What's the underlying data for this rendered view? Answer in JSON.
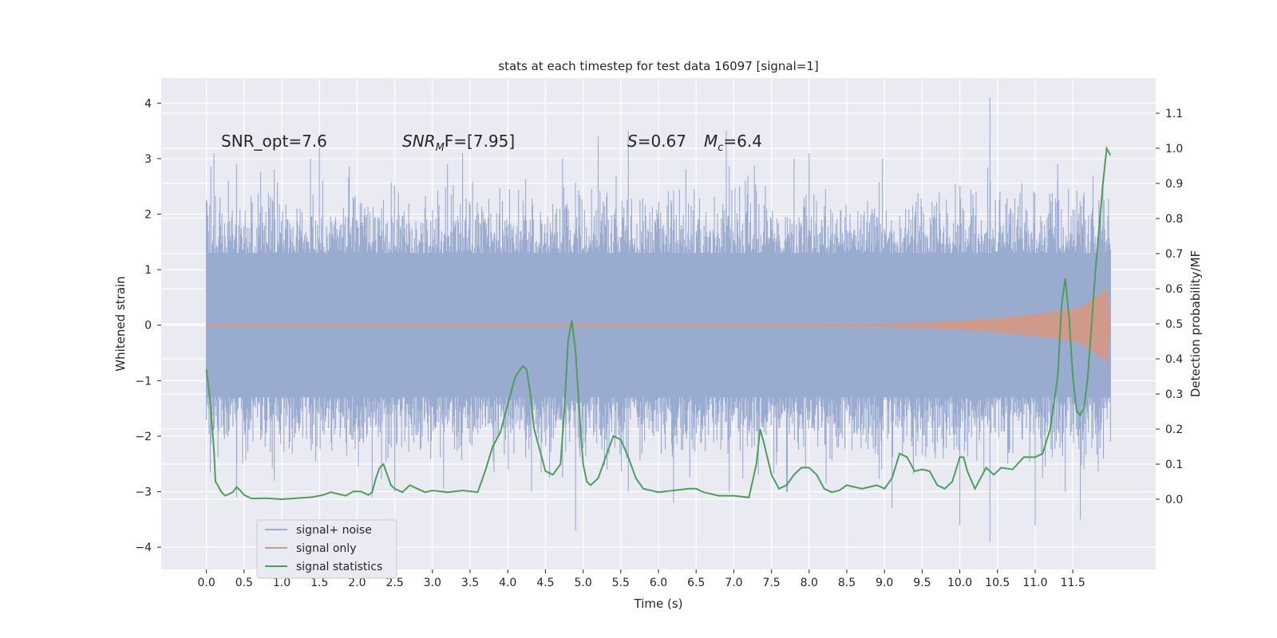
{
  "chart_data": {
    "type": "line",
    "title": "stats at each timestep for test data 16097 [signal=1]",
    "xlabel": "Time (s)",
    "ylabel": "Whitened strain",
    "ylabel_right": "Detection probability/MF",
    "xlim": [
      -0.6,
      12.6
    ],
    "ylim": [
      -4.4,
      4.45
    ],
    "ylim_right": [
      -0.2,
      1.2
    ],
    "x_ticks": [
      "0.0",
      "0.5",
      "1.0",
      "1.5",
      "2.0",
      "2.5",
      "3.0",
      "3.5",
      "4.0",
      "4.5",
      "5.0",
      "5.5",
      "6.0",
      "6.5",
      "7.0",
      "7.5",
      "8.0",
      "8.5",
      "9.0",
      "9.5",
      "10.0",
      "10.5",
      "11.0",
      "11.5"
    ],
    "y_ticks_left": [
      "4",
      "3",
      "2",
      "1",
      "0",
      "−1",
      "−2",
      "−3",
      "−4"
    ],
    "y_ticks_right": [
      "1.1",
      "1.0",
      "0.9",
      "0.8",
      "0.7",
      "0.6",
      "0.5",
      "0.4",
      "0.3",
      "0.2",
      "0.1",
      "0.0"
    ],
    "grid": true,
    "annotations": {
      "snr_opt": "SNR_opt=7.6",
      "snr_mf_prefix": "SNR",
      "snr_mf_sub": "M",
      "snr_mf_suffix": "F=[7.95]",
      "s_prefix": "S",
      "s_value": "=0.67",
      "mc_prefix": "M",
      "mc_sub": "c",
      "mc_value": "=6.4"
    },
    "legend": {
      "placement": "lower-left",
      "entries": [
        "signal+ noise",
        "signal only",
        "signal statistics"
      ]
    },
    "colors": {
      "noise": "#9aabd0",
      "signal": "#d09a8a",
      "stats": "#4c9f5a",
      "background": "#eaeaf2",
      "grid": "#ffffff"
    },
    "series": [
      {
        "name": "signal+ noise",
        "axis": "left",
        "x_range": [
          0.0,
          12.0
        ],
        "envelope_typical": [
          -1.3,
          1.3
        ],
        "peak_max": [
          [
            0.0,
            2.15
          ],
          [
            0.1,
            3.1
          ],
          [
            0.4,
            2.9
          ],
          [
            0.9,
            2.8
          ],
          [
            1.5,
            3.2
          ],
          [
            2.1,
            2.1
          ],
          [
            3.2,
            2.9
          ],
          [
            3.4,
            3.1
          ],
          [
            5.2,
            3.4
          ],
          [
            5.6,
            3.5
          ],
          [
            6.9,
            3.5
          ],
          [
            7.8,
            3.0
          ],
          [
            8.0,
            3.1
          ],
          [
            10.4,
            4.1
          ],
          [
            11.3,
            2.9
          ],
          [
            11.9,
            2.6
          ]
        ],
        "peak_min": [
          [
            0.0,
            -1.7
          ],
          [
            0.4,
            -3.1
          ],
          [
            0.9,
            -2.8
          ],
          [
            2.2,
            -3.1
          ],
          [
            2.5,
            -3.0
          ],
          [
            4.9,
            -3.7
          ],
          [
            5.6,
            -3.0
          ],
          [
            6.2,
            -3.2
          ],
          [
            7.7,
            -3.0
          ],
          [
            9.1,
            -3.3
          ],
          [
            10.0,
            -3.6
          ],
          [
            10.4,
            -3.9
          ],
          [
            11.0,
            -3.6
          ],
          [
            11.4,
            -3.0
          ],
          [
            11.6,
            -3.5
          ],
          [
            12.0,
            -2.1
          ]
        ]
      },
      {
        "name": "signal only",
        "axis": "left",
        "chirp_start": 7.5,
        "chirp_end": 11.95,
        "peak_amplitude": 0.7
      },
      {
        "name": "signal statistics",
        "axis": "right",
        "points": [
          [
            0.0,
            0.37
          ],
          [
            0.05,
            0.28
          ],
          [
            0.1,
            0.14
          ],
          [
            0.12,
            0.05
          ],
          [
            0.15,
            0.04
          ],
          [
            0.2,
            0.02
          ],
          [
            0.25,
            0.01
          ],
          [
            0.3,
            0.015
          ],
          [
            0.35,
            0.02
          ],
          [
            0.4,
            0.035
          ],
          [
            0.45,
            0.025
          ],
          [
            0.5,
            0.012
          ],
          [
            0.6,
            0.002
          ],
          [
            0.8,
            0.003
          ],
          [
            1.0,
            0.0
          ],
          [
            1.2,
            0.003
          ],
          [
            1.4,
            0.006
          ],
          [
            1.55,
            0.012
          ],
          [
            1.65,
            0.02
          ],
          [
            1.75,
            0.015
          ],
          [
            1.85,
            0.01
          ],
          [
            1.95,
            0.022
          ],
          [
            2.05,
            0.022
          ],
          [
            2.15,
            0.012
          ],
          [
            2.2,
            0.02
          ],
          [
            2.25,
            0.06
          ],
          [
            2.3,
            0.09
          ],
          [
            2.35,
            0.1
          ],
          [
            2.4,
            0.07
          ],
          [
            2.45,
            0.04
          ],
          [
            2.5,
            0.03
          ],
          [
            2.6,
            0.02
          ],
          [
            2.7,
            0.04
          ],
          [
            2.8,
            0.03
          ],
          [
            2.9,
            0.02
          ],
          [
            3.0,
            0.025
          ],
          [
            3.2,
            0.02
          ],
          [
            3.4,
            0.025
          ],
          [
            3.6,
            0.02
          ],
          [
            3.7,
            0.08
          ],
          [
            3.8,
            0.15
          ],
          [
            3.9,
            0.19
          ],
          [
            4.0,
            0.27
          ],
          [
            4.1,
            0.35
          ],
          [
            4.2,
            0.38
          ],
          [
            4.25,
            0.37
          ],
          [
            4.3,
            0.3
          ],
          [
            4.35,
            0.2
          ],
          [
            4.45,
            0.12
          ],
          [
            4.5,
            0.08
          ],
          [
            4.6,
            0.07
          ],
          [
            4.7,
            0.1
          ],
          [
            4.75,
            0.25
          ],
          [
            4.8,
            0.45
          ],
          [
            4.85,
            0.51
          ],
          [
            4.9,
            0.42
          ],
          [
            4.95,
            0.25
          ],
          [
            5.0,
            0.1
          ],
          [
            5.05,
            0.05
          ],
          [
            5.1,
            0.04
          ],
          [
            5.2,
            0.06
          ],
          [
            5.3,
            0.12
          ],
          [
            5.4,
            0.18
          ],
          [
            5.5,
            0.17
          ],
          [
            5.6,
            0.12
          ],
          [
            5.7,
            0.06
          ],
          [
            5.8,
            0.03
          ],
          [
            5.9,
            0.025
          ],
          [
            6.0,
            0.02
          ],
          [
            6.2,
            0.025
          ],
          [
            6.4,
            0.03
          ],
          [
            6.5,
            0.03
          ],
          [
            6.6,
            0.02
          ],
          [
            6.8,
            0.01
          ],
          [
            7.0,
            0.01
          ],
          [
            7.2,
            0.005
          ],
          [
            7.3,
            0.1
          ],
          [
            7.35,
            0.2
          ],
          [
            7.4,
            0.16
          ],
          [
            7.5,
            0.07
          ],
          [
            7.6,
            0.03
          ],
          [
            7.7,
            0.04
          ],
          [
            7.8,
            0.07
          ],
          [
            7.9,
            0.09
          ],
          [
            8.0,
            0.09
          ],
          [
            8.1,
            0.07
          ],
          [
            8.2,
            0.03
          ],
          [
            8.3,
            0.02
          ],
          [
            8.4,
            0.025
          ],
          [
            8.5,
            0.04
          ],
          [
            8.6,
            0.035
          ],
          [
            8.7,
            0.03
          ],
          [
            8.8,
            0.035
          ],
          [
            8.9,
            0.04
          ],
          [
            9.0,
            0.03
          ],
          [
            9.1,
            0.06
          ],
          [
            9.2,
            0.13
          ],
          [
            9.3,
            0.12
          ],
          [
            9.4,
            0.08
          ],
          [
            9.5,
            0.085
          ],
          [
            9.6,
            0.08
          ],
          [
            9.7,
            0.04
          ],
          [
            9.8,
            0.03
          ],
          [
            9.9,
            0.05
          ],
          [
            10.0,
            0.12
          ],
          [
            10.05,
            0.12
          ],
          [
            10.1,
            0.08
          ],
          [
            10.2,
            0.03
          ],
          [
            10.3,
            0.07
          ],
          [
            10.35,
            0.09
          ],
          [
            10.45,
            0.07
          ],
          [
            10.55,
            0.09
          ],
          [
            10.7,
            0.085
          ],
          [
            10.85,
            0.12
          ],
          [
            11.0,
            0.12
          ],
          [
            11.1,
            0.13
          ],
          [
            11.2,
            0.2
          ],
          [
            11.3,
            0.35
          ],
          [
            11.35,
            0.55
          ],
          [
            11.4,
            0.63
          ],
          [
            11.45,
            0.52
          ],
          [
            11.5,
            0.35
          ],
          [
            11.55,
            0.25
          ],
          [
            11.6,
            0.24
          ],
          [
            11.65,
            0.26
          ],
          [
            11.7,
            0.35
          ],
          [
            11.8,
            0.65
          ],
          [
            11.9,
            0.9
          ],
          [
            11.95,
            1.0
          ],
          [
            12.0,
            0.98
          ]
        ]
      }
    ]
  }
}
